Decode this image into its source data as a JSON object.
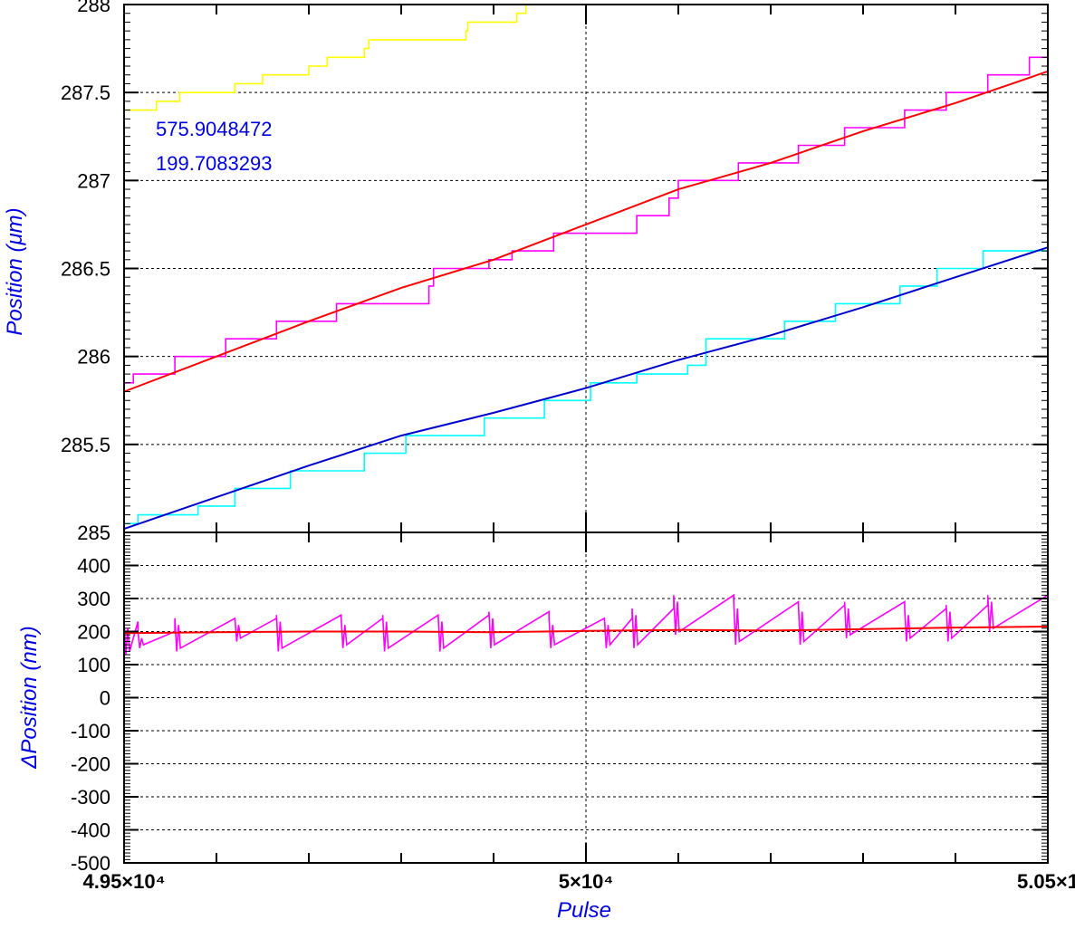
{
  "chart_data": [
    {
      "type": "line",
      "panel": "top",
      "ylabel": "Position (μm)",
      "xlim": [
        49500,
        50500
      ],
      "ylim": [
        285,
        288
      ],
      "yticks": [
        "285",
        "285.5",
        "286",
        "286.5",
        "287",
        "287.5",
        "288"
      ],
      "grid": true,
      "annotations": [
        "575.9048472",
        "199.7083293"
      ],
      "series": [
        {
          "color": "#ffff00",
          "style": "steps",
          "points": [
            [
              49500,
              287.4
            ],
            [
              49535,
              287.4
            ],
            [
              49535,
              287.45
            ],
            [
              49560,
              287.45
            ],
            [
              49560,
              287.5
            ],
            [
              49620,
              287.5
            ],
            [
              49620,
              287.55
            ],
            [
              49650,
              287.55
            ],
            [
              49650,
              287.6
            ],
            [
              49700,
              287.6
            ],
            [
              49700,
              287.65
            ],
            [
              49720,
              287.65
            ],
            [
              49720,
              287.7
            ],
            [
              49760,
              287.7
            ],
            [
              49760,
              287.75
            ],
            [
              49765,
              287.75
            ],
            [
              49765,
              287.8
            ],
            [
              49870,
              287.8
            ],
            [
              49870,
              287.85
            ],
            [
              49872,
              287.85
            ],
            [
              49872,
              287.9
            ],
            [
              49925,
              287.9
            ],
            [
              49925,
              287.95
            ],
            [
              49935,
              287.95
            ],
            [
              49935,
              288.0
            ],
            [
              50042,
              288.0
            ]
          ]
        },
        {
          "color": "#ff00ff",
          "style": "steps",
          "points": [
            [
              49500,
              285.85
            ],
            [
              49510,
              285.85
            ],
            [
              49510,
              285.9
            ],
            [
              49555,
              285.9
            ],
            [
              49555,
              286.0
            ],
            [
              49610,
              286.0
            ],
            [
              49610,
              286.1
            ],
            [
              49665,
              286.1
            ],
            [
              49665,
              286.2
            ],
            [
              49730,
              286.2
            ],
            [
              49730,
              286.3
            ],
            [
              49830,
              286.3
            ],
            [
              49830,
              286.4
            ],
            [
              49835,
              286.4
            ],
            [
              49835,
              286.5
            ],
            [
              49895,
              286.5
            ],
            [
              49895,
              286.55
            ],
            [
              49920,
              286.55
            ],
            [
              49920,
              286.6
            ],
            [
              49965,
              286.6
            ],
            [
              49965,
              286.7
            ],
            [
              50055,
              286.7
            ],
            [
              50055,
              286.8
            ],
            [
              50090,
              286.8
            ],
            [
              50090,
              286.9
            ],
            [
              50100,
              286.9
            ],
            [
              50100,
              287.0
            ],
            [
              50165,
              287.0
            ],
            [
              50165,
              287.1
            ],
            [
              50230,
              287.1
            ],
            [
              50230,
              287.2
            ],
            [
              50280,
              287.2
            ],
            [
              50280,
              287.3
            ],
            [
              50345,
              287.3
            ],
            [
              50345,
              287.4
            ],
            [
              50390,
              287.4
            ],
            [
              50390,
              287.5
            ],
            [
              50435,
              287.5
            ],
            [
              50435,
              287.6
            ],
            [
              50480,
              287.6
            ],
            [
              50480,
              287.7
            ],
            [
              50500,
              287.7
            ]
          ]
        },
        {
          "color": "#ff0000",
          "style": "line",
          "points": [
            [
              49500,
              285.8
            ],
            [
              49600,
              286.0
            ],
            [
              49700,
              286.2
            ],
            [
              49800,
              286.39
            ],
            [
              49900,
              286.55
            ],
            [
              50000,
              286.75
            ],
            [
              50100,
              286.95
            ],
            [
              50200,
              287.1
            ],
            [
              50300,
              287.28
            ],
            [
              50400,
              287.44
            ],
            [
              50500,
              287.62
            ]
          ]
        },
        {
          "color": "#00ffff",
          "style": "steps",
          "points": [
            [
              49500,
              285.05
            ],
            [
              49515,
              285.05
            ],
            [
              49515,
              285.1
            ],
            [
              49580,
              285.1
            ],
            [
              49580,
              285.15
            ],
            [
              49620,
              285.15
            ],
            [
              49620,
              285.25
            ],
            [
              49680,
              285.25
            ],
            [
              49680,
              285.35
            ],
            [
              49760,
              285.35
            ],
            [
              49760,
              285.45
            ],
            [
              49805,
              285.45
            ],
            [
              49805,
              285.55
            ],
            [
              49890,
              285.55
            ],
            [
              49890,
              285.65
            ],
            [
              49955,
              285.65
            ],
            [
              49955,
              285.75
            ],
            [
              50005,
              285.75
            ],
            [
              50005,
              285.85
            ],
            [
              50055,
              285.85
            ],
            [
              50055,
              285.9
            ],
            [
              50110,
              285.9
            ],
            [
              50110,
              285.95
            ],
            [
              50130,
              285.95
            ],
            [
              50130,
              286.1
            ],
            [
              50215,
              286.1
            ],
            [
              50215,
              286.2
            ],
            [
              50270,
              286.2
            ],
            [
              50270,
              286.3
            ],
            [
              50340,
              286.3
            ],
            [
              50340,
              286.4
            ],
            [
              50380,
              286.4
            ],
            [
              50380,
              286.5
            ],
            [
              50430,
              286.5
            ],
            [
              50430,
              286.6
            ],
            [
              50500,
              286.6
            ]
          ]
        },
        {
          "color": "#0000cc",
          "style": "line",
          "points": [
            [
              49500,
              285.02
            ],
            [
              49600,
              285.2
            ],
            [
              49700,
              285.38
            ],
            [
              49800,
              285.55
            ],
            [
              49900,
              285.68
            ],
            [
              50000,
              285.82
            ],
            [
              50100,
              285.98
            ],
            [
              50200,
              286.12
            ],
            [
              50300,
              286.28
            ],
            [
              50400,
              286.45
            ],
            [
              50500,
              286.62
            ]
          ]
        }
      ]
    },
    {
      "type": "line",
      "panel": "bottom",
      "ylabel": "ΔPosition (nm)",
      "xlabel": "Pulse",
      "xlim": [
        49500,
        50500
      ],
      "ylim": [
        -500,
        500
      ],
      "yticks": [
        "-500",
        "-400",
        "-300",
        "-200",
        "-100",
        "0",
        "100",
        "200",
        "300",
        "400"
      ],
      "xticks": [
        "4.95×10⁴",
        "5×10⁴",
        "5.05×1"
      ],
      "grid": true,
      "series": [
        {
          "color": "#ff00ff",
          "style": "sawtooth",
          "teeth": [
            [
              49500,
              49515,
              230,
              130
            ],
            [
              49515,
              49555,
              200,
              150
            ],
            [
              49555,
              49620,
              240,
              140
            ],
            [
              49620,
              49665,
              240,
              170
            ],
            [
              49665,
              49735,
              250,
              140
            ],
            [
              49735,
              49780,
              240,
              150
            ],
            [
              49780,
              49840,
              250,
              140
            ],
            [
              49840,
              49895,
              250,
              140
            ],
            [
              49895,
              49960,
              260,
              150
            ],
            [
              49960,
              50020,
              240,
              150
            ],
            [
              50020,
              50050,
              240,
              150
            ],
            [
              50050,
              50095,
              270,
              150
            ],
            [
              50095,
              50160,
              310,
              190
            ],
            [
              50160,
              50230,
              290,
              160
            ],
            [
              50230,
              50280,
              280,
              160
            ],
            [
              50280,
              50345,
              290,
              180
            ],
            [
              50345,
              50390,
              270,
              170
            ],
            [
              50390,
              50435,
              280,
              170
            ],
            [
              50435,
              50500,
              310,
              200
            ]
          ]
        },
        {
          "color": "#ff0000",
          "style": "line",
          "points": [
            [
              49500,
              195
            ],
            [
              49600,
              198
            ],
            [
              49700,
              200
            ],
            [
              49800,
              200
            ],
            [
              49900,
              198
            ],
            [
              50000,
              202
            ],
            [
              50100,
              205
            ],
            [
              50200,
              203
            ],
            [
              50300,
              207
            ],
            [
              50400,
              212
            ],
            [
              50500,
              215
            ]
          ]
        }
      ]
    }
  ]
}
